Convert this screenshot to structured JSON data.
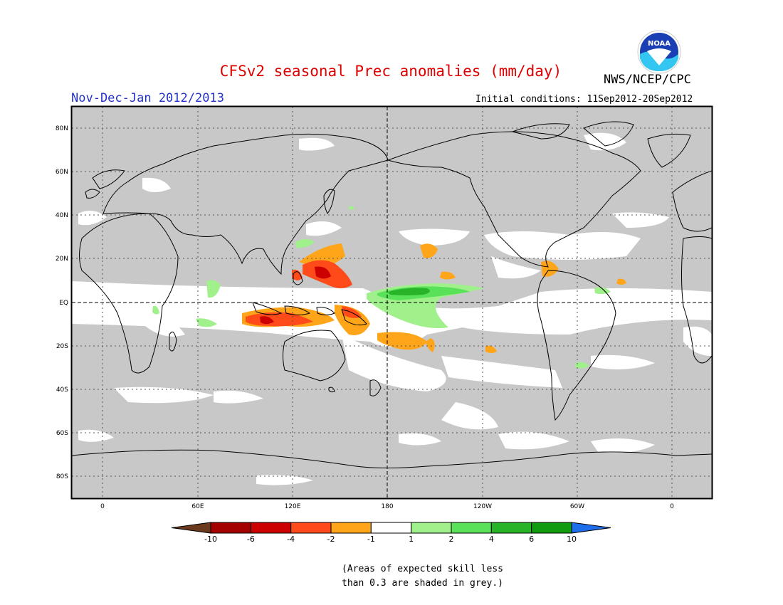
{
  "title": "CFSv2 seasonal Prec anomalies (mm/day)",
  "organization": "NWS/NCEP/CPC",
  "logo_text": "NOAA",
  "season": "Nov-Dec-Jan 2012/2013",
  "initial_conditions": "Initial conditions: 11Sep2012-20Sep2012",
  "lat_labels": [
    "80N",
    "60N",
    "40N",
    "20N",
    "EQ",
    "20S",
    "40S",
    "60S",
    "80S"
  ],
  "lon_labels": [
    "0",
    "60E",
    "120E",
    "180",
    "120W",
    "60W",
    "0"
  ],
  "colorbar": {
    "boundaries": [
      "-10",
      "-6",
      "-4",
      "-2",
      "-1",
      "1",
      "2",
      "4",
      "6",
      "10"
    ],
    "colors": [
      "#6b3a1e",
      "#a50000",
      "#cc0000",
      "#ff4a1a",
      "#ffa51a",
      "#ffffff",
      "#a0f08c",
      "#5ae15a",
      "#28b428",
      "#109b10",
      "#1e6eeb"
    ],
    "units": "mm/day"
  },
  "colors": {
    "grey_mask": "#c8c8c8",
    "land_outline": "#000000",
    "title": "#e00000",
    "season": "#2233cc"
  },
  "note_line1": "(Areas of expected skill less",
  "note_line2": "than 0.3 are shaded in grey.)"
}
